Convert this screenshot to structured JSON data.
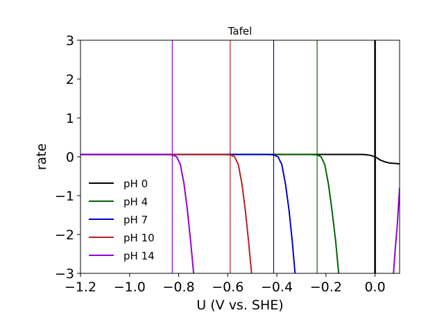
{
  "chart_data": {
    "type": "line",
    "title": "Tafel",
    "xlabel": "U (V vs. SHE)",
    "ylabel": "rate",
    "xlim": [
      -1.2,
      0.1
    ],
    "ylim": [
      -3,
      3
    ],
    "xticks": [
      -1.2,
      -1.0,
      -0.8,
      -0.6,
      -0.4,
      -0.2,
      0.0
    ],
    "xtick_labels": [
      "−1.2",
      "−1.0",
      "−0.8",
      "−0.6",
      "−0.4",
      "−0.2",
      "0.0"
    ],
    "yticks": [
      -3,
      -2,
      -1,
      0,
      1,
      2,
      3
    ],
    "ytick_labels": [
      "−3",
      "−2",
      "−1",
      "0",
      "1",
      "2",
      "3"
    ],
    "legend_position": "lower-left",
    "grid": false,
    "series": [
      {
        "name": "pH 0",
        "color": "#000000",
        "equilibrium_potential": 0.0,
        "points": [
          [
            -1.2,
            0.06
          ],
          [
            -0.2,
            0.06
          ],
          [
            -0.1,
            0.06
          ],
          [
            -0.05,
            0.06
          ],
          [
            -0.03,
            0.05
          ],
          [
            -0.02,
            0.04
          ],
          [
            -0.01,
            0.02
          ],
          [
            0.0,
            0.0
          ],
          [
            0.01,
            -0.04
          ],
          [
            0.02,
            -0.08
          ],
          [
            0.04,
            -0.13
          ],
          [
            0.06,
            -0.16
          ],
          [
            0.08,
            -0.17
          ],
          [
            0.1,
            -0.18
          ]
        ]
      },
      {
        "name": "pH 4",
        "color": "#006400",
        "equilibrium_potential": -0.236,
        "points": [
          [
            -1.2,
            0.06
          ],
          [
            -0.26,
            0.06
          ],
          [
            -0.236,
            0.05
          ],
          [
            -0.22,
            0.0
          ],
          [
            -0.205,
            -0.2
          ],
          [
            -0.19,
            -0.7
          ],
          [
            -0.175,
            -1.4
          ],
          [
            -0.16,
            -2.2
          ],
          [
            -0.148,
            -3.0
          ]
        ]
      },
      {
        "name": "pH 7",
        "color": "#0000cd",
        "equilibrium_potential": -0.413,
        "points": [
          [
            -1.2,
            0.06
          ],
          [
            -0.44,
            0.06
          ],
          [
            -0.413,
            0.05
          ],
          [
            -0.395,
            0.0
          ],
          [
            -0.38,
            -0.2
          ],
          [
            -0.365,
            -0.7
          ],
          [
            -0.35,
            -1.4
          ],
          [
            -0.337,
            -2.2
          ],
          [
            -0.326,
            -3.0
          ]
        ]
      },
      {
        "name": "pH 10",
        "color": "#b22222",
        "equilibrium_potential": -0.59,
        "points": [
          [
            -1.2,
            0.06
          ],
          [
            -0.615,
            0.06
          ],
          [
            -0.59,
            0.05
          ],
          [
            -0.572,
            0.0
          ],
          [
            -0.557,
            -0.2
          ],
          [
            -0.542,
            -0.7
          ],
          [
            -0.528,
            -1.4
          ],
          [
            -0.515,
            -2.2
          ],
          [
            -0.503,
            -3.0
          ]
        ]
      },
      {
        "name": "pH 14",
        "color": "#9400d3",
        "equilibrium_potential": -0.826,
        "points": [
          [
            -1.2,
            0.06
          ],
          [
            -0.85,
            0.06
          ],
          [
            -0.826,
            0.05
          ],
          [
            -0.808,
            0.0
          ],
          [
            -0.793,
            -0.2
          ],
          [
            -0.778,
            -0.7
          ],
          [
            -0.764,
            -1.4
          ],
          [
            -0.751,
            -2.2
          ],
          [
            -0.739,
            -3.0
          ]
        ],
        "branch_points": [
          [
            0.075,
            -3.0
          ],
          [
            0.082,
            -2.4
          ],
          [
            0.09,
            -1.8
          ],
          [
            0.1,
            -0.8
          ]
        ]
      }
    ]
  }
}
